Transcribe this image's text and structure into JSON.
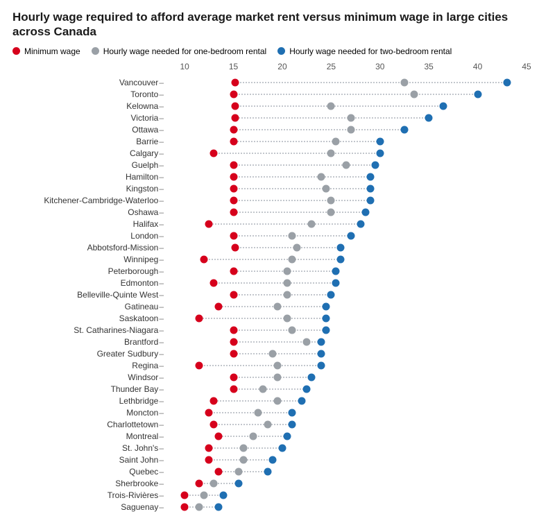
{
  "title": "Hourly wage required to afford average market rent versus minimum wage in large cities across Canada",
  "title_fontsize": 17,
  "legend": [
    {
      "label": "Minimum wage",
      "color": "#d6001c"
    },
    {
      "label": "Hourly wage needed for one-bedroom rental",
      "color": "#9aa0a6"
    },
    {
      "label": "Hourly wage needed for two-bedroom rental",
      "color": "#1f6fb2"
    }
  ],
  "legend_fontsize": 12,
  "chart": {
    "type": "dotplot",
    "xlim": [
      8,
      45
    ],
    "xticks": [
      10,
      15,
      20,
      25,
      30,
      35,
      40,
      45
    ],
    "xtick_fontsize": 12,
    "ylabel_fontsize": 12,
    "dot_diameter": 11,
    "connector_color": "#c2c6cc",
    "background_color": "#ffffff",
    "colors": {
      "min": "#d6001c",
      "one": "#9aa0a6",
      "two": "#1f6fb2"
    },
    "rows": [
      {
        "city": "Vancouver",
        "min": 15.2,
        "one": 32.5,
        "two": 43.0
      },
      {
        "city": "Toronto",
        "min": 15.0,
        "one": 33.5,
        "two": 40.0
      },
      {
        "city": "Kelowna",
        "min": 15.2,
        "one": 25.0,
        "two": 36.5
      },
      {
        "city": "Victoria",
        "min": 15.2,
        "one": 27.0,
        "two": 35.0
      },
      {
        "city": "Ottawa",
        "min": 15.0,
        "one": 27.0,
        "two": 32.5
      },
      {
        "city": "Barrie",
        "min": 15.0,
        "one": 25.5,
        "two": 30.0
      },
      {
        "city": "Calgary",
        "min": 13.0,
        "one": 25.0,
        "two": 30.0
      },
      {
        "city": "Guelph",
        "min": 15.0,
        "one": 26.5,
        "two": 29.5
      },
      {
        "city": "Hamilton",
        "min": 15.0,
        "one": 24.0,
        "two": 29.0
      },
      {
        "city": "Kingston",
        "min": 15.0,
        "one": 24.5,
        "two": 29.0
      },
      {
        "city": "Kitchener-Cambridge-Waterloo",
        "min": 15.0,
        "one": 25.0,
        "two": 29.0
      },
      {
        "city": "Oshawa",
        "min": 15.0,
        "one": 25.0,
        "two": 28.5
      },
      {
        "city": "Halifax",
        "min": 12.5,
        "one": 23.0,
        "two": 28.0
      },
      {
        "city": "London",
        "min": 15.0,
        "one": 21.0,
        "two": 27.0
      },
      {
        "city": "Abbotsford-Mission",
        "min": 15.2,
        "one": 21.5,
        "two": 26.0
      },
      {
        "city": "Winnipeg",
        "min": 12.0,
        "one": 21.0,
        "two": 26.0
      },
      {
        "city": "Peterborough",
        "min": 15.0,
        "one": 20.5,
        "two": 25.5
      },
      {
        "city": "Edmonton",
        "min": 13.0,
        "one": 20.5,
        "two": 25.5
      },
      {
        "city": "Belleville-Quinte West",
        "min": 15.0,
        "one": 20.5,
        "two": 25.0
      },
      {
        "city": "Gatineau",
        "min": 13.5,
        "one": 19.5,
        "two": 24.5
      },
      {
        "city": "Saskatoon",
        "min": 11.5,
        "one": 20.5,
        "two": 24.5
      },
      {
        "city": "St. Catharines-Niagara",
        "min": 15.0,
        "one": 21.0,
        "two": 24.5
      },
      {
        "city": "Brantford",
        "min": 15.0,
        "one": 22.5,
        "two": 24.0
      },
      {
        "city": "Greater Sudbury",
        "min": 15.0,
        "one": 19.0,
        "two": 24.0
      },
      {
        "city": "Regina",
        "min": 11.5,
        "one": 19.5,
        "two": 24.0
      },
      {
        "city": "Windsor",
        "min": 15.0,
        "one": 19.5,
        "two": 23.0
      },
      {
        "city": "Thunder Bay",
        "min": 15.0,
        "one": 18.0,
        "two": 22.5
      },
      {
        "city": "Lethbridge",
        "min": 13.0,
        "one": 19.5,
        "two": 22.0
      },
      {
        "city": "Moncton",
        "min": 12.5,
        "one": 17.5,
        "two": 21.0
      },
      {
        "city": "Charlottetown",
        "min": 13.0,
        "one": 18.5,
        "two": 21.0
      },
      {
        "city": "Montreal",
        "min": 13.5,
        "one": 17.0,
        "two": 20.5
      },
      {
        "city": "St. John's",
        "min": 12.5,
        "one": 16.0,
        "two": 20.0
      },
      {
        "city": "Saint John",
        "min": 12.5,
        "one": 16.0,
        "two": 19.0
      },
      {
        "city": "Quebec",
        "min": 13.5,
        "one": 15.5,
        "two": 18.5
      },
      {
        "city": "Sherbrooke",
        "min": 11.5,
        "one": 13.0,
        "two": 15.5
      },
      {
        "city": "Trois-Rivières",
        "min": 10.0,
        "one": 12.0,
        "two": 14.0
      },
      {
        "city": "Saguenay",
        "min": 10.0,
        "one": 11.5,
        "two": 13.5
      }
    ]
  }
}
